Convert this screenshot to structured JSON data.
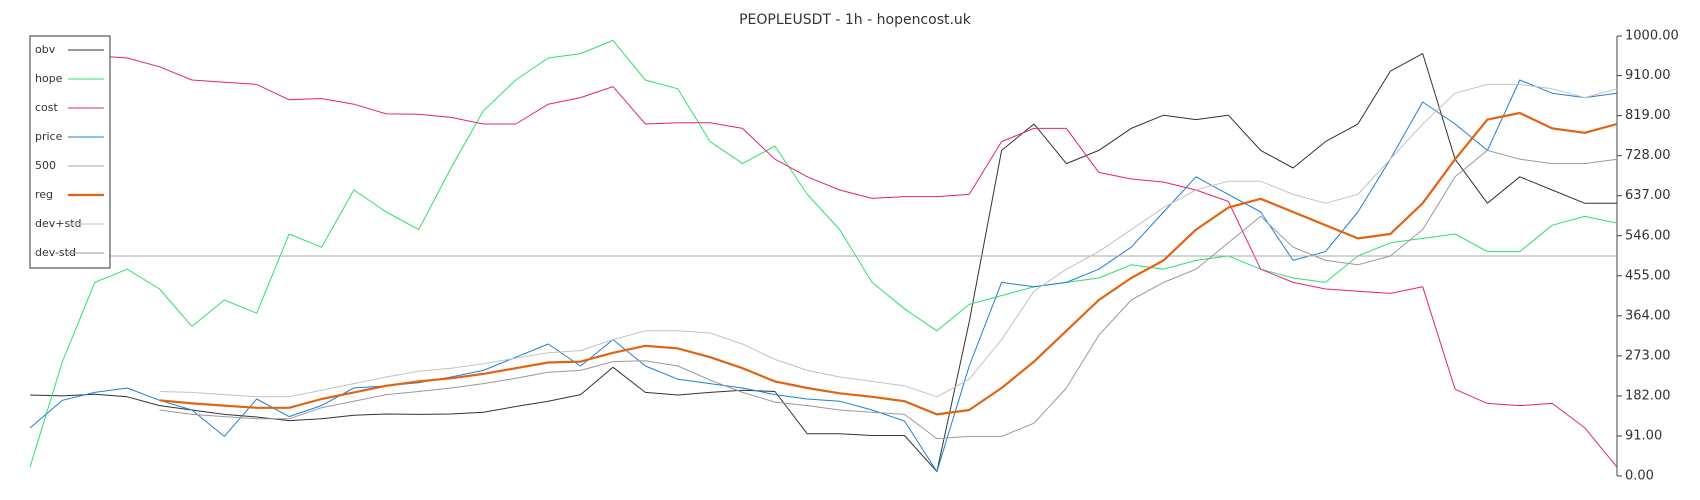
{
  "chart_data": {
    "type": "line",
    "title": "PEOPLEUSDT - 1h - hopencost.uk",
    "legend": "upper left",
    "ylim": [
      0,
      1000
    ],
    "yticks": [
      {
        "value": 0,
        "label": "0.00"
      },
      {
        "value": 91,
        "label": "91.00"
      },
      {
        "value": 182,
        "label": "182.00"
      },
      {
        "value": 273,
        "label": "273.00"
      },
      {
        "value": 364,
        "label": "364.00"
      },
      {
        "value": 455,
        "label": "455.00"
      },
      {
        "value": 546,
        "label": "546.00"
      },
      {
        "value": 637,
        "label": "637.00"
      },
      {
        "value": 728,
        "label": "728.00"
      },
      {
        "value": 819,
        "label": "819.00"
      },
      {
        "value": 910,
        "label": "910.00"
      },
      {
        "value": 1000,
        "label": "1000.00"
      }
    ],
    "series": [
      {
        "name": "obv",
        "color": "#333333",
        "width": 1,
        "values": [
          184,
          182,
          186,
          180,
          160,
          150,
          140,
          134,
          126,
          130,
          138,
          141,
          140,
          141,
          145,
          158,
          170,
          185,
          247,
          190,
          184,
          190,
          195,
          192,
          96,
          96,
          92,
          92,
          10,
          350,
          740,
          800,
          710,
          740,
          790,
          820,
          810,
          820,
          740,
          700,
          760,
          800,
          920,
          960,
          720,
          620,
          680,
          650,
          620,
          620
        ]
      },
      {
        "name": "hope",
        "color": "#2ee06a",
        "width": 1,
        "values": [
          20,
          260,
          440,
          470,
          425,
          340,
          400,
          370,
          550,
          520,
          650,
          600,
          560,
          700,
          830,
          900,
          950,
          960,
          990,
          900,
          880,
          760,
          710,
          750,
          640,
          560,
          440,
          380,
          330,
          390,
          410,
          430,
          440,
          450,
          480,
          470,
          490,
          500,
          470,
          450,
          440,
          500,
          530,
          540,
          550,
          510,
          510,
          570,
          590,
          575
        ]
      },
      {
        "name": "cost",
        "color": "#e8207a",
        "width": 1,
        "values": [
          975,
          960,
          955,
          950,
          930,
          900,
          895,
          890,
          855,
          858,
          845,
          823,
          822,
          815,
          800,
          800,
          845,
          860,
          885,
          800,
          803,
          803,
          790,
          720,
          680,
          650,
          631,
          635,
          635,
          640,
          760,
          790,
          790,
          690,
          675,
          668,
          650,
          624,
          470,
          440,
          425,
          420,
          415,
          430,
          197,
          165,
          160,
          165,
          110,
          20
        ]
      },
      {
        "name": "price",
        "color": "#1f7fd8",
        "width": 1,
        "values": [
          109,
          172,
          190,
          200,
          172,
          150,
          90,
          175,
          135,
          160,
          200,
          205,
          212,
          225,
          240,
          270,
          300,
          250,
          310,
          250,
          220,
          210,
          200,
          185,
          175,
          170,
          150,
          125,
          10,
          250,
          440,
          430,
          440,
          470,
          520,
          600,
          680,
          640,
          600,
          490,
          510,
          600,
          720,
          850,
          800,
          740,
          900,
          870,
          860,
          870
        ]
      },
      {
        "name": "500",
        "color": "#aaaaaa",
        "width": 1,
        "values": [
          500,
          500,
          500,
          500,
          500,
          500,
          500,
          500,
          500,
          500,
          500,
          500,
          500,
          500,
          500,
          500,
          500,
          500,
          500,
          500,
          500,
          500,
          500,
          500,
          500,
          500,
          500,
          500,
          500,
          500,
          500,
          500,
          500,
          500,
          500,
          500,
          500,
          500,
          500,
          500,
          500,
          500,
          500,
          500,
          500,
          500,
          500,
          500,
          500,
          500
        ]
      },
      {
        "name": "reg",
        "color": "#e06414",
        "width": 2.2,
        "values": [
          null,
          null,
          null,
          null,
          172,
          165,
          160,
          155,
          155,
          175,
          190,
          205,
          215,
          222,
          232,
          245,
          258,
          260,
          280,
          296,
          290,
          270,
          245,
          215,
          200,
          188,
          180,
          170,
          140,
          150,
          200,
          260,
          330,
          400,
          450,
          490,
          560,
          610,
          630,
          600,
          570,
          540,
          550,
          620,
          720,
          810,
          825,
          790,
          780,
          800
        ]
      },
      {
        "name": "dev+std",
        "color": "#c2c2c2",
        "width": 1,
        "values": [
          null,
          null,
          null,
          null,
          192,
          190,
          185,
          180,
          180,
          195,
          210,
          225,
          238,
          245,
          255,
          268,
          280,
          285,
          310,
          330,
          330,
          325,
          300,
          265,
          240,
          225,
          215,
          205,
          180,
          220,
          310,
          420,
          470,
          510,
          560,
          610,
          650,
          670,
          670,
          640,
          620,
          640,
          720,
          800,
          870,
          890,
          890,
          880,
          860,
          880
        ]
      },
      {
        "name": "dev-std",
        "color": "#999999",
        "width": 1,
        "values": [
          null,
          null,
          null,
          null,
          150,
          140,
          135,
          130,
          130,
          155,
          170,
          185,
          192,
          200,
          210,
          222,
          236,
          240,
          260,
          262,
          250,
          218,
          190,
          168,
          160,
          150,
          145,
          140,
          85,
          90,
          90,
          120,
          200,
          320,
          400,
          440,
          470,
          530,
          590,
          520,
          490,
          480,
          500,
          560,
          680,
          740,
          720,
          710,
          710,
          720
        ]
      }
    ]
  }
}
